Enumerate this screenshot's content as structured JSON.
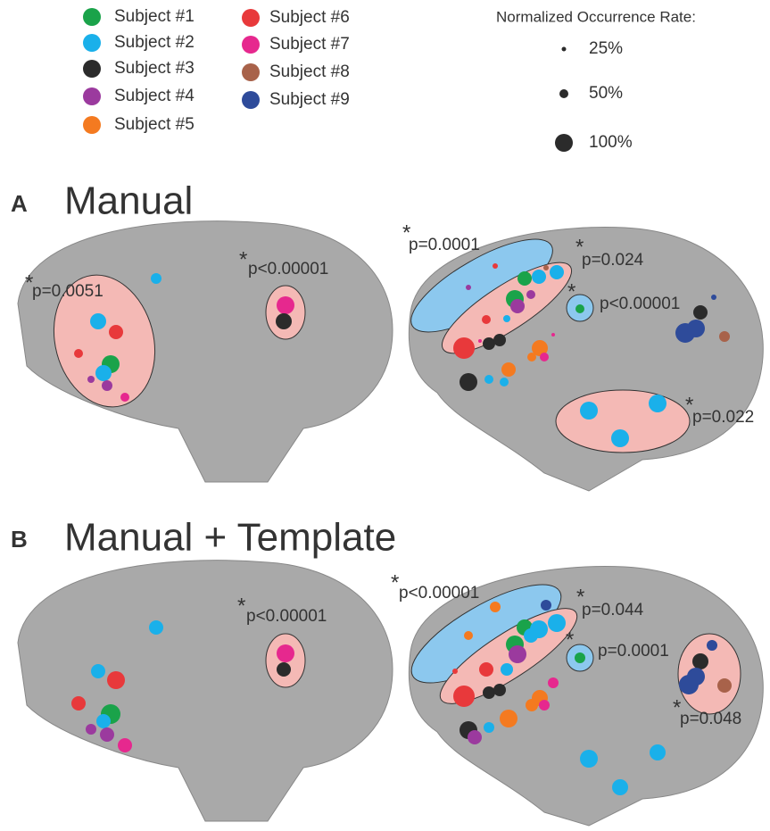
{
  "legend": {
    "subjects": [
      {
        "name": "Subject #1",
        "color": "#1aa34a"
      },
      {
        "name": "Subject #2",
        "color": "#1ab0ea"
      },
      {
        "name": "Subject #3",
        "color": "#2b2b2b"
      },
      {
        "name": "Subject #4",
        "color": "#9b3a9e"
      },
      {
        "name": "Subject #5",
        "color": "#f47a20"
      },
      {
        "name": "Subject #6",
        "color": "#e8393b"
      },
      {
        "name": "Subject #7",
        "color": "#e6288e"
      },
      {
        "name": "Subject #8",
        "color": "#a8624a"
      },
      {
        "name": "Subject #9",
        "color": "#2e4b9a"
      }
    ]
  },
  "size_legend": {
    "title": "Normalized Occurrence Rate:",
    "labels": [
      "25%",
      "50%",
      "100%"
    ]
  },
  "panels": [
    {
      "letter": "A",
      "title": "Manual",
      "annotations": [
        {
          "star": "*",
          "text": "p=0.0051"
        },
        {
          "star": "*",
          "text": "p<0.00001"
        },
        {
          "star": "*",
          "text": "p=0.0001"
        },
        {
          "star": "*",
          "text": "p=0.024"
        },
        {
          "star": "*",
          "text": "p<0.00001"
        },
        {
          "star": "*",
          "text": "p=0.022"
        }
      ]
    },
    {
      "letter": "B",
      "title": "Manual + Template",
      "annotations": [
        {
          "star": "*",
          "text": "p<0.00001"
        },
        {
          "star": "*",
          "text": "p<0.00001"
        },
        {
          "star": "*",
          "text": "p=0.044"
        },
        {
          "star": "*",
          "text": "p=0.0001"
        },
        {
          "star": "*",
          "text": "p=0.048"
        }
      ]
    }
  ]
}
